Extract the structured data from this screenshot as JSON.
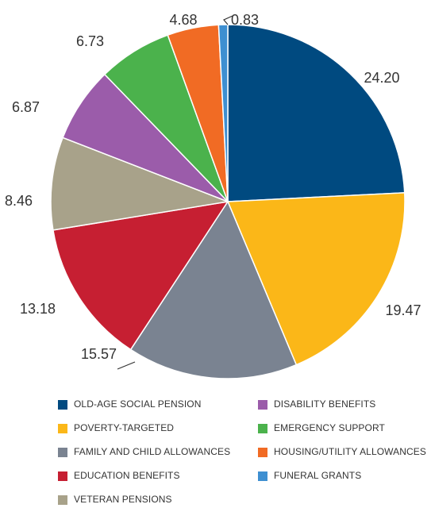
{
  "chart_data": {
    "type": "pie",
    "categories": [
      "OLD-AGE SOCIAL PENSION",
      "POVERTY-TARGETED",
      "FAMILY AND CHILD ALLOWANCES",
      "EDUCATION BENEFITS",
      "VETERAN PENSIONS",
      "DISABILITY BENEFITS",
      "EMERGENCY SUPPORT",
      "HOUSING/UTILITY ALLOWANCES",
      "FUNERAL GRANTS"
    ],
    "values": [
      24.2,
      19.47,
      15.57,
      13.18,
      8.46,
      6.87,
      6.73,
      4.68,
      0.83
    ],
    "labels": [
      "24.20",
      "19.47",
      "15.57",
      "13.18",
      "8.46",
      "6.87",
      "6.73",
      "4.68",
      "0.83"
    ],
    "colors": [
      "#004a80",
      "#fbb718",
      "#7a8391",
      "#c61f32",
      "#a8a28a",
      "#9b5caa",
      "#4bb24c",
      "#f16b24",
      "#3e8fd1"
    ],
    "legend_position": "bottom",
    "title": "",
    "xlabel": "",
    "ylabel": ""
  }
}
